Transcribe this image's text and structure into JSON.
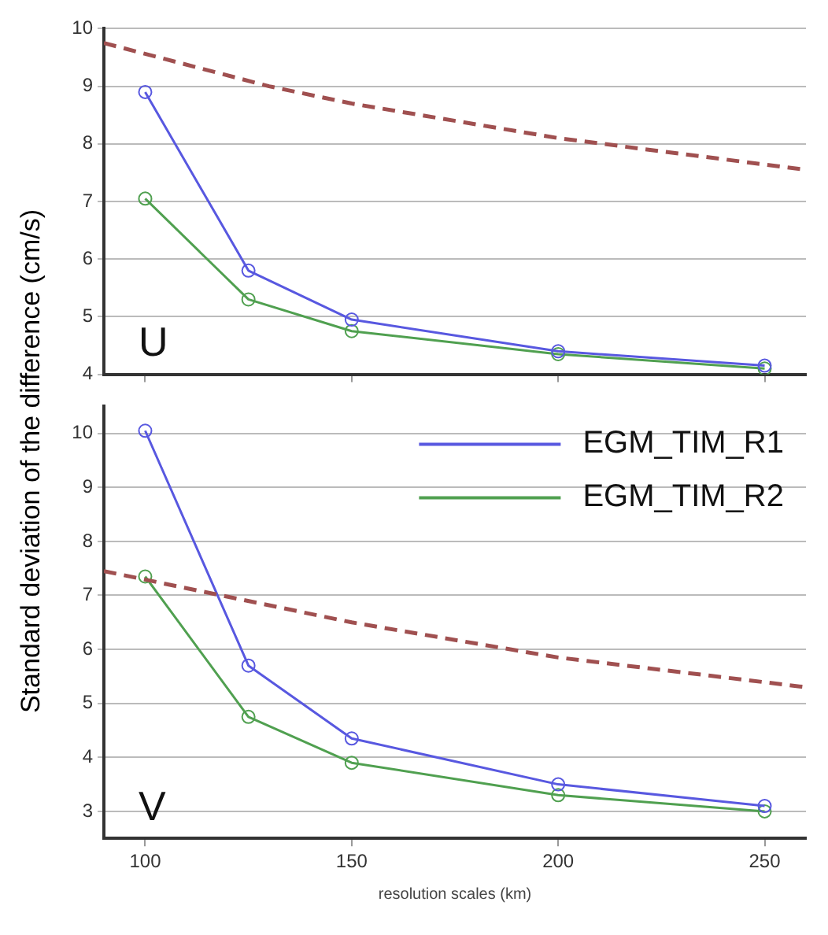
{
  "chart_data": [
    {
      "type": "line",
      "ylabel": "Standard deviation of the difference (cm/s)",
      "annotations": [
        "U"
      ],
      "xlim": [
        90,
        260
      ],
      "xticks": [
        100,
        150,
        200,
        250
      ],
      "ylim": [
        4,
        10
      ],
      "yticks": [
        4,
        5,
        6,
        7,
        8,
        9,
        10
      ],
      "tick_labels": "y",
      "grid": "y",
      "legend": false,
      "series": [
        {
          "color": "#a05050",
          "x": [
            90,
            130,
            150,
            200,
            260
          ],
          "values": [
            9.75,
            9.0,
            8.7,
            8.1,
            7.55
          ],
          "line_style": "dashed",
          "marker": "none"
        },
        {
          "color": "#5858e0",
          "x": [
            100,
            125,
            150,
            200,
            250
          ],
          "values": [
            8.9,
            5.8,
            4.95,
            4.4,
            4.15
          ],
          "line_style": "solid",
          "marker": "circle"
        },
        {
          "color": "#50a050",
          "x": [
            100,
            125,
            150,
            200,
            250
          ],
          "values": [
            7.05,
            5.3,
            4.75,
            4.35,
            4.1
          ],
          "line_style": "solid",
          "marker": "circle"
        }
      ]
    },
    {
      "type": "line",
      "xlabel": "resolution scales (km)",
      "annotations": [
        "V"
      ],
      "xlim": [
        90,
        260
      ],
      "xticks": [
        100,
        150,
        200,
        250
      ],
      "ylim": [
        2.5,
        10.5
      ],
      "yticks": [
        3,
        4,
        5,
        6,
        7,
        8,
        9,
        10
      ],
      "grid": "y",
      "legend": "top right",
      "series": [
        {
          "color": "#a05050",
          "x": [
            90,
            150,
            200,
            260
          ],
          "values": [
            7.45,
            6.5,
            5.85,
            5.3
          ],
          "line_style": "dashed",
          "marker": "none"
        },
        {
          "name": "EGM_TIM_R1",
          "color": "#5858e0",
          "x": [
            100,
            125,
            150,
            200,
            250
          ],
          "values": [
            10.05,
            5.7,
            4.35,
            3.5,
            3.1
          ],
          "line_style": "solid",
          "marker": "circle"
        },
        {
          "name": "EGM_TIM_R2",
          "color": "#50a050",
          "x": [
            100,
            125,
            150,
            200,
            250
          ],
          "values": [
            7.35,
            4.75,
            3.9,
            3.3,
            3.0
          ],
          "line_style": "solid",
          "marker": "circle"
        }
      ]
    }
  ]
}
